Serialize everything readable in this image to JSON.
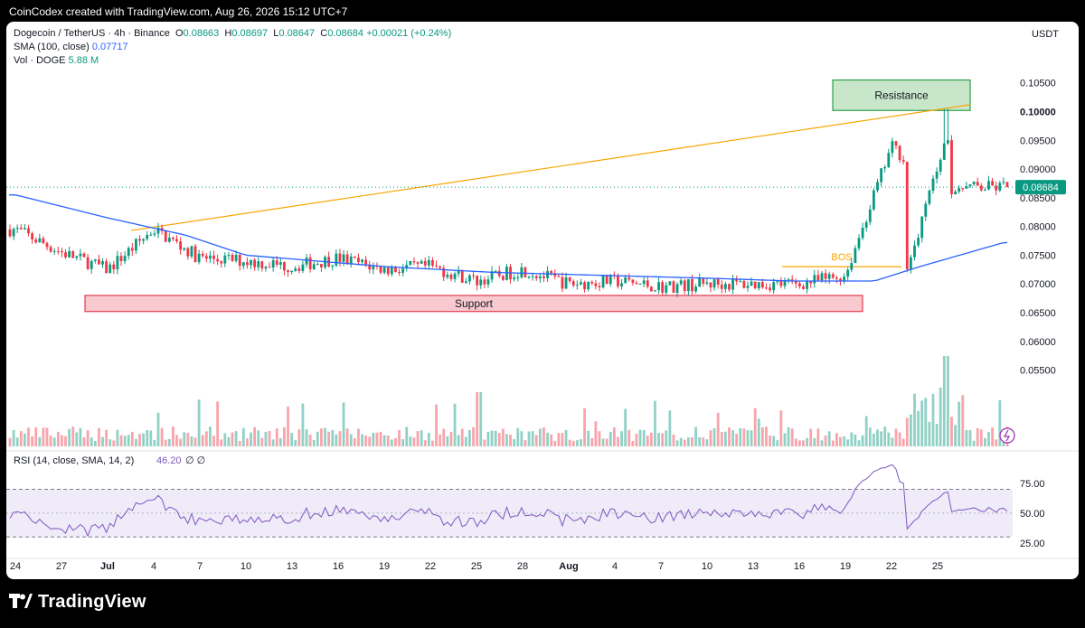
{
  "header": {
    "credit": "CoinCodex created with TradingView.com, Aug 26, 2026 15:12 UTC+7"
  },
  "legend": {
    "symbol": "Dogecoin / TetherUS · 4h · Binance",
    "open_label": "O",
    "open": "0.08663",
    "high_label": "H",
    "high": "0.08697",
    "low_label": "L",
    "low": "0.08647",
    "close_label": "C",
    "close": "0.08684",
    "change": "+0.00021 (+0.24%)",
    "sma_label": "SMA (100, close)",
    "sma_value": "0.07717",
    "vol_label": "Vol · DOGE",
    "vol_value": "5.88 M",
    "rsi_label": "RSI (14, close, SMA, 14, 2)",
    "rsi_value": "46.20",
    "rsi_extra": "∅  ∅"
  },
  "axis_unit": "USDT",
  "footer": {
    "brand": "TradingView"
  },
  "colors": {
    "up": "#089981",
    "down": "#f23645",
    "sma": "#2962ff",
    "rsi": "#7e57c2",
    "trend": "#f7a600"
  },
  "chart_data": [
    {
      "type": "candlestick",
      "pair": "DOGE/USDT",
      "timeframe": "4h",
      "x_tick_labels": [
        "24",
        "27",
        "Jul",
        "4",
        "7",
        "10",
        "13",
        "16",
        "19",
        "22",
        "25",
        "28",
        "Aug",
        "4",
        "7",
        "10",
        "13",
        "16",
        "19",
        "22",
        "25"
      ],
      "y_tick_labels": [
        "0.10500",
        "0.10000",
        "0.09500",
        "0.09000",
        "0.08500",
        "0.08000",
        "0.07500",
        "0.07000",
        "0.06500",
        "0.06000",
        "0.05500"
      ],
      "ylim": [
        0.051,
        0.107
      ],
      "last_price": "0.08684",
      "close_path": [
        {
          "x": "24",
          "y": 0.0795
        },
        {
          "x": "27",
          "y": 0.0755
        },
        {
          "x": "Jul",
          "y": 0.0725
        },
        {
          "x": "4",
          "y": 0.0795
        },
        {
          "x": "7",
          "y": 0.0745
        },
        {
          "x": "10",
          "y": 0.074
        },
        {
          "x": "13",
          "y": 0.073
        },
        {
          "x": "16",
          "y": 0.0745
        },
        {
          "x": "19",
          "y": 0.0725
        },
        {
          "x": "22",
          "y": 0.073
        },
        {
          "x": "25",
          "y": 0.0705
        },
        {
          "x": "28",
          "y": 0.0725
        },
        {
          "x": "Aug",
          "y": 0.07
        },
        {
          "x": "4",
          "y": 0.0705
        },
        {
          "x": "7",
          "y": 0.0695
        },
        {
          "x": "10",
          "y": 0.07
        },
        {
          "x": "13",
          "y": 0.07
        },
        {
          "x": "16",
          "y": 0.07
        },
        {
          "x": "19",
          "y": 0.0715
        },
        {
          "x": "22",
          "y": 0.094
        },
        {
          "x": "25",
          "y": 0.0868
        }
      ],
      "sma_path": [
        {
          "x": "24",
          "y": 0.0855
        },
        {
          "x": "Jul",
          "y": 0.0815
        },
        {
          "x": "4",
          "y": 0.0785
        },
        {
          "x": "10",
          "y": 0.075
        },
        {
          "x": "19",
          "y": 0.073
        },
        {
          "x": "25",
          "y": 0.072
        },
        {
          "x": "7",
          "y": 0.071
        },
        {
          "x": "13",
          "y": 0.0705
        },
        {
          "x": "19",
          "y": 0.0705
        },
        {
          "x": "22",
          "y": 0.073
        },
        {
          "x": "25",
          "y": 0.0772
        }
      ],
      "annotations": [
        {
          "label": "Resistance",
          "y": 0.1025,
          "kind": "zone"
        },
        {
          "label": "Support",
          "y": 0.0665,
          "kind": "zone"
        },
        {
          "label": "BOS",
          "y": 0.073,
          "kind": "level"
        }
      ]
    },
    {
      "type": "line",
      "name": "RSI",
      "y_tick_labels": [
        "75.00",
        "50.00",
        "25.00"
      ],
      "ylim": [
        15,
        97
      ],
      "band": [
        30,
        70
      ],
      "last_value": "46.20"
    }
  ]
}
